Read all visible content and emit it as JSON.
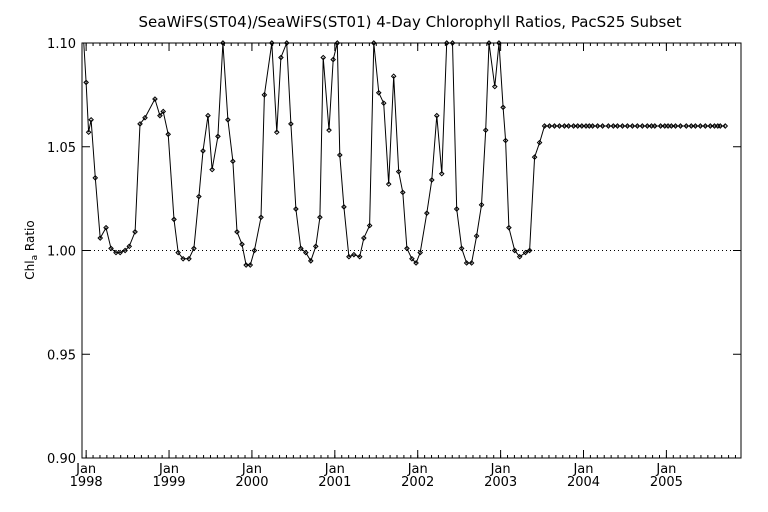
{
  "chart_data": {
    "type": "line",
    "title": "SeaWiFS(ST04)/SeaWiFS(ST01) 4-Day Chlorophyll Ratios, PacS25 Subset",
    "ylabel_main": "Chl",
    "ylabel_sub": "a",
    "ylabel_tail": " Ratio",
    "ylim": [
      0.9,
      1.1
    ],
    "xlim": [
      1997.95,
      2005.9
    ],
    "yticks": [
      {
        "value": 0.9,
        "label": "0.90"
      },
      {
        "value": 0.95,
        "label": "0.95"
      },
      {
        "value": 1.0,
        "label": "1.00"
      },
      {
        "value": 1.05,
        "label": "1.05"
      },
      {
        "value": 1.1,
        "label": "1.10"
      }
    ],
    "xticks": [
      {
        "value": 1998.0,
        "month": "Jan",
        "year": "1998"
      },
      {
        "value": 1999.0,
        "month": "Jan",
        "year": "1999"
      },
      {
        "value": 2000.0,
        "month": "Jan",
        "year": "2000"
      },
      {
        "value": 2001.0,
        "month": "Jan",
        "year": "2001"
      },
      {
        "value": 2002.0,
        "month": "Jan",
        "year": "2002"
      },
      {
        "value": 2003.0,
        "month": "Jan",
        "year": "2003"
      },
      {
        "value": 2004.0,
        "month": "Jan",
        "year": "2004"
      },
      {
        "value": 2005.0,
        "month": "Jan",
        "year": "2005"
      }
    ],
    "reference_line": 1.0,
    "series": [
      {
        "x": [
          1997.96,
          1998.0,
          1998.03,
          1998.06,
          1998.11,
          1998.17,
          1998.24,
          1998.3,
          1998.36,
          1998.41,
          1998.47,
          1998.52,
          1998.59,
          1998.65,
          1998.71,
          1998.83,
          1998.89,
          1998.93,
          1998.99,
          1999.06,
          1999.11,
          1999.17,
          1999.24,
          1999.3,
          1999.36,
          1999.41,
          1999.47,
          1999.52,
          1999.59,
          1999.65,
          1999.71,
          1999.77,
          1999.82,
          1999.88,
          1999.93,
          1999.98,
          2000.03,
          2000.11,
          2000.15,
          2000.24,
          2000.3,
          2000.35,
          2000.42,
          2000.47,
          2000.53,
          2000.59,
          2000.65,
          2000.71,
          2000.77,
          2000.82,
          2000.86,
          2000.93,
          2000.98,
          2001.03,
          2001.06,
          2001.11,
          2001.17,
          2001.23,
          2001.3,
          2001.35,
          2001.42,
          2001.47,
          2001.53,
          2001.59,
          2001.65,
          2001.71,
          2001.77,
          2001.82,
          2001.87,
          2001.93,
          2001.98,
          2002.03,
          2002.11,
          2002.17,
          2002.23,
          2002.29,
          2002.35,
          2002.42,
          2002.47,
          2002.53,
          2002.59,
          2002.65,
          2002.71,
          2002.77,
          2002.82,
          2002.86,
          2002.93,
          2002.98,
          2003.03,
          2003.06,
          2003.1,
          2003.17,
          2003.23,
          2003.3,
          2003.35,
          2003.41,
          2003.47,
          2003.53,
          2003.59,
          2003.65,
          2003.71,
          2003.77,
          2003.82,
          2003.88,
          2003.93,
          2003.98,
          2004.03,
          2004.07,
          2004.11,
          2004.17,
          2004.23,
          2004.3,
          2004.36,
          2004.41,
          2004.47,
          2004.53,
          2004.59,
          2004.65,
          2004.71,
          2004.77,
          2004.82,
          2004.86,
          2004.93,
          2004.98,
          2005.02,
          2005.06,
          2005.11,
          2005.17,
          2005.24,
          2005.3,
          2005.35,
          2005.41,
          2005.47,
          2005.53,
          2005.58,
          2005.62,
          2005.65,
          2005.71
        ],
        "values": [
          1.108,
          1.081,
          1.057,
          1.063,
          1.035,
          1.006,
          1.011,
          1.001,
          0.999,
          0.999,
          1.0,
          1.002,
          1.009,
          1.061,
          1.064,
          1.073,
          1.065,
          1.067,
          1.056,
          1.015,
          0.999,
          0.996,
          0.996,
          1.001,
          1.026,
          1.048,
          1.065,
          1.039,
          1.055,
          1.1,
          1.063,
          1.043,
          1.009,
          1.003,
          0.993,
          0.993,
          1.0,
          1.016,
          1.075,
          1.1,
          1.057,
          1.093,
          1.1,
          1.061,
          1.02,
          1.001,
          0.999,
          0.995,
          1.002,
          1.016,
          1.093,
          1.058,
          1.092,
          1.1,
          1.046,
          1.021,
          0.997,
          0.998,
          0.997,
          1.006,
          1.012,
          1.1,
          1.076,
          1.071,
          1.032,
          1.084,
          1.038,
          1.028,
          1.001,
          0.996,
          0.994,
          0.999,
          1.018,
          1.034,
          1.065,
          1.037,
          1.1,
          1.1,
          1.02,
          1.001,
          0.994,
          0.994,
          1.007,
          1.022,
          1.058,
          1.1,
          1.079,
          1.1,
          1.069,
          1.053,
          1.011,
          1.0,
          0.997,
          0.999,
          1.0,
          1.045,
          1.052,
          1.06,
          1.06,
          1.06,
          1.06,
          1.06,
          1.06,
          1.06,
          1.06,
          1.06,
          1.06,
          1.06,
          1.06,
          1.06,
          1.06,
          1.06,
          1.06,
          1.06,
          1.06,
          1.06,
          1.06,
          1.06,
          1.06,
          1.06,
          1.06,
          1.06,
          1.06,
          1.06,
          1.06,
          1.06,
          1.06,
          1.06,
          1.06,
          1.06,
          1.06,
          1.06,
          1.06,
          1.06,
          1.06,
          1.06,
          1.06,
          1.06
        ],
        "color": "#000000"
      }
    ]
  }
}
